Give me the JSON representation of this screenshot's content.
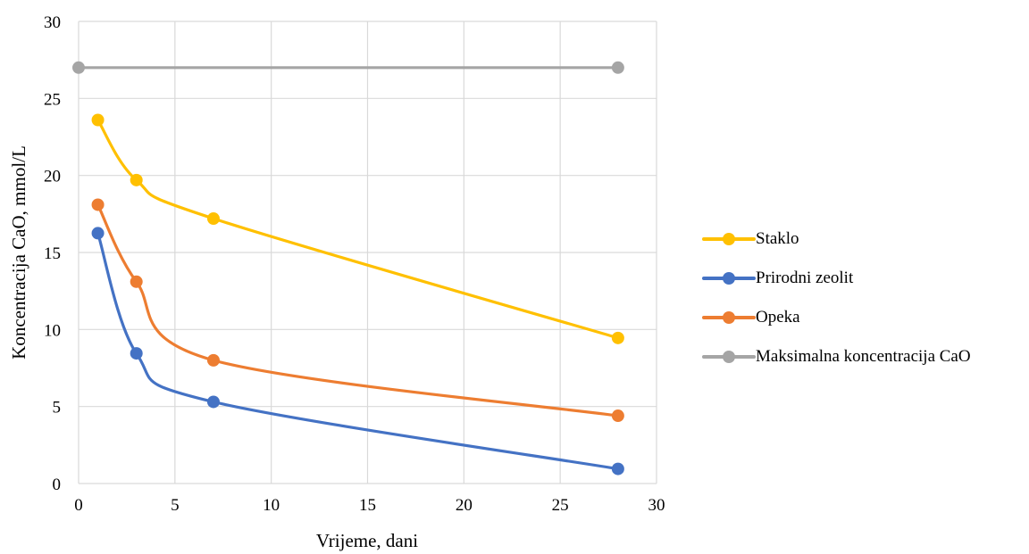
{
  "chart_data": {
    "type": "line",
    "xlabel": "Vrijeme, dani",
    "ylabel": "Koncentracija CaO, mmol/L",
    "xlim": [
      0,
      30
    ],
    "ylim": [
      0,
      30
    ],
    "xticks": [
      0,
      5,
      10,
      15,
      20,
      25,
      30
    ],
    "yticks": [
      0,
      5,
      10,
      15,
      20,
      25,
      30
    ],
    "grid": true,
    "smooth": true,
    "legend_position": "right",
    "series": [
      {
        "name": "Staklo",
        "color": "#FFC000",
        "x": [
          1,
          3,
          7,
          28
        ],
        "y": [
          23.6,
          19.7,
          17.2,
          9.45
        ]
      },
      {
        "name": "Prirodni zeolit",
        "color": "#4472C4",
        "x": [
          1,
          3,
          7,
          28
        ],
        "y": [
          16.25,
          8.45,
          5.3,
          0.95
        ]
      },
      {
        "name": "Opeka",
        "color": "#ED7D31",
        "x": [
          1,
          3,
          7,
          28
        ],
        "y": [
          18.1,
          13.1,
          8.0,
          4.4
        ]
      },
      {
        "name": "Maksimalna koncentracija CaO",
        "color": "#A5A5A5",
        "x": [
          0,
          28
        ],
        "y": [
          27.0,
          27.0
        ]
      }
    ]
  }
}
